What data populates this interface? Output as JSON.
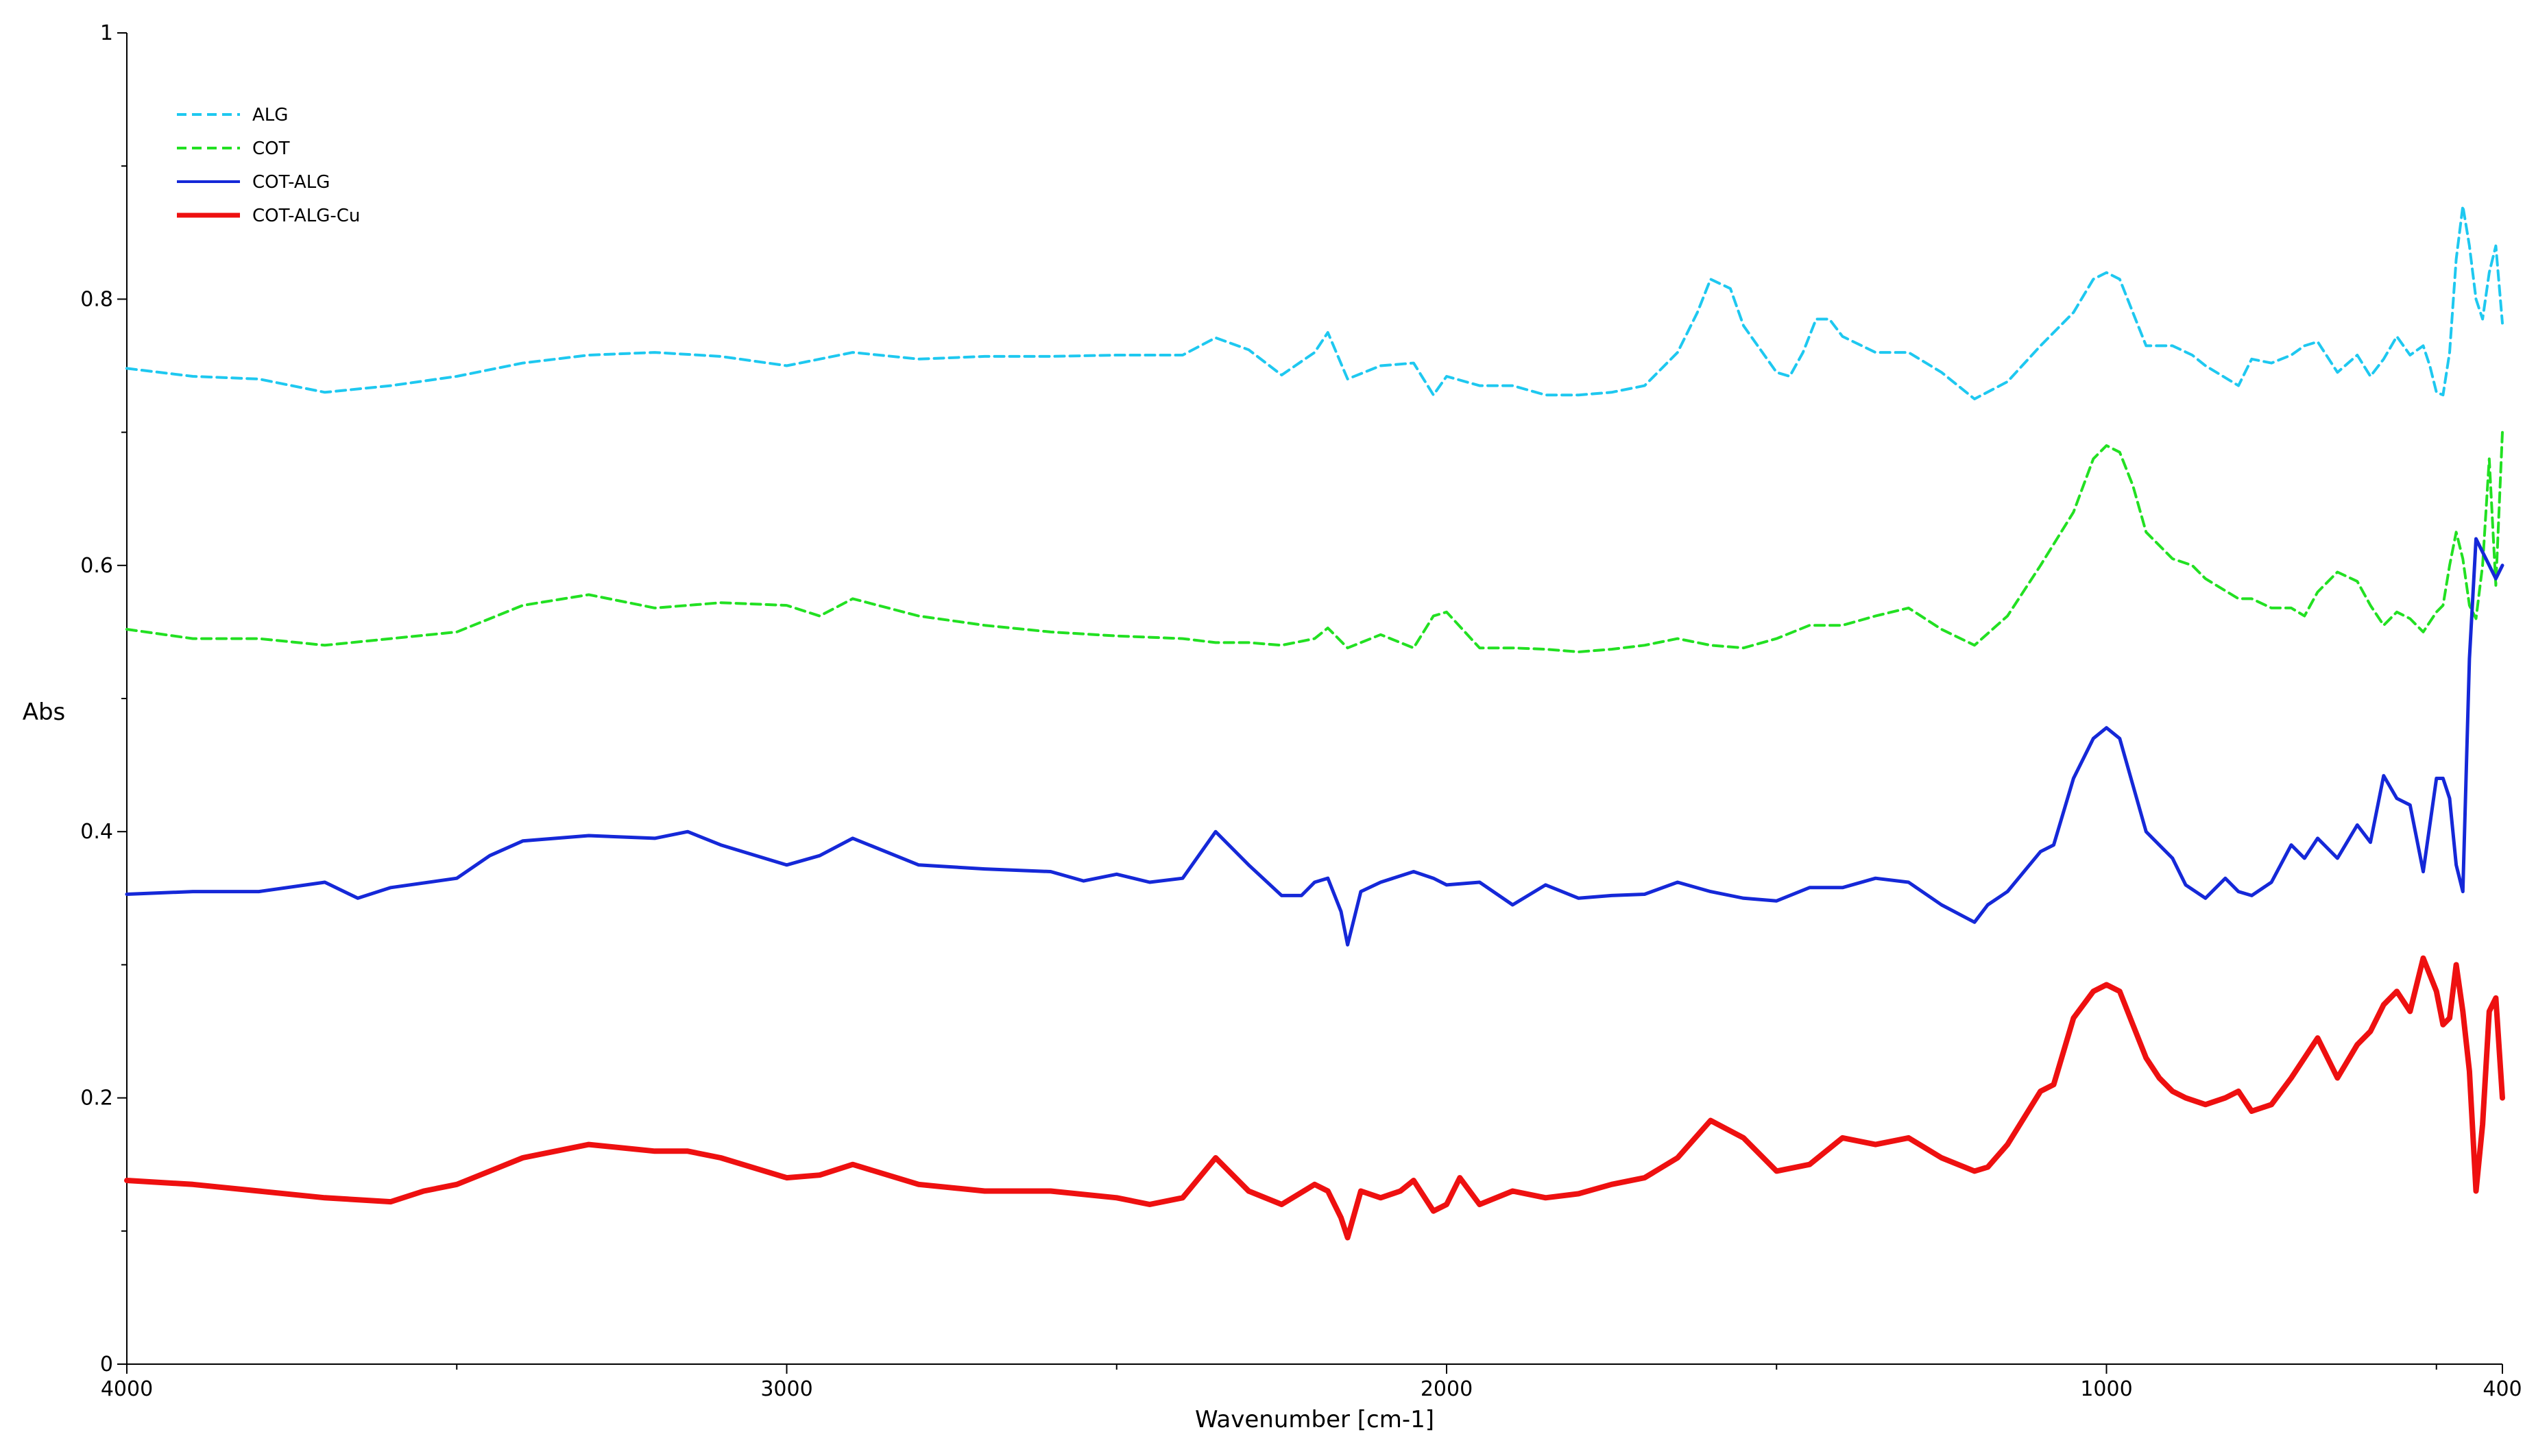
{
  "chart_data": {
    "type": "line",
    "title": "",
    "xlabel": "Wavenumber [cm-1]",
    "ylabel": "Abs",
    "xlim": [
      4000,
      400
    ],
    "ylim": [
      0,
      1
    ],
    "x_reversed": true,
    "x_ticks": [
      4000,
      3000,
      2000,
      1000,
      400
    ],
    "x_tick_labels": [
      "4000",
      "3000",
      "2000",
      "1000",
      "400"
    ],
    "y_ticks": [
      0,
      0.2,
      0.4,
      0.6,
      0.8,
      1
    ],
    "y_tick_labels": [
      "0",
      "0.2",
      "0.4",
      "0.6",
      "0.8",
      "1"
    ],
    "grid": false,
    "legend_position": "top-left",
    "series": [
      {
        "name": "ALG",
        "color": "#1ec8f0",
        "dash": "dashed",
        "x": [
          4000,
          3900,
          3800,
          3700,
          3600,
          3500,
          3400,
          3300,
          3200,
          3100,
          3000,
          2900,
          2800,
          2700,
          2600,
          2500,
          2400,
          2350,
          2300,
          2250,
          2200,
          2180,
          2150,
          2100,
          2050,
          2020,
          2000,
          1950,
          1900,
          1850,
          1800,
          1750,
          1700,
          1650,
          1620,
          1600,
          1570,
          1550,
          1500,
          1480,
          1460,
          1440,
          1420,
          1400,
          1350,
          1300,
          1250,
          1200,
          1150,
          1100,
          1050,
          1020,
          1000,
          980,
          960,
          940,
          900,
          870,
          850,
          800,
          780,
          750,
          720,
          700,
          680,
          650,
          620,
          600,
          580,
          560,
          540,
          520,
          510,
          500,
          490,
          480,
          470,
          460,
          450,
          440,
          430,
          420,
          410,
          400
        ],
        "y": [
          0.748,
          0.742,
          0.74,
          0.73,
          0.735,
          0.742,
          0.752,
          0.758,
          0.76,
          0.757,
          0.75,
          0.76,
          0.755,
          0.757,
          0.757,
          0.758,
          0.758,
          0.771,
          0.762,
          0.743,
          0.76,
          0.775,
          0.74,
          0.75,
          0.752,
          0.728,
          0.742,
          0.735,
          0.735,
          0.728,
          0.728,
          0.73,
          0.735,
          0.76,
          0.79,
          0.815,
          0.808,
          0.78,
          0.745,
          0.742,
          0.76,
          0.785,
          0.785,
          0.772,
          0.76,
          0.76,
          0.745,
          0.725,
          0.738,
          0.765,
          0.79,
          0.815,
          0.82,
          0.815,
          0.79,
          0.765,
          0.765,
          0.758,
          0.75,
          0.735,
          0.755,
          0.752,
          0.758,
          0.765,
          0.768,
          0.745,
          0.758,
          0.742,
          0.755,
          0.772,
          0.758,
          0.765,
          0.75,
          0.73,
          0.728,
          0.76,
          0.83,
          0.87,
          0.84,
          0.8,
          0.785,
          0.82,
          0.84,
          0.782
        ]
      },
      {
        "name": "COT",
        "color": "#22e022",
        "dash": "dashed",
        "x": [
          4000,
          3900,
          3800,
          3700,
          3600,
          3500,
          3400,
          3300,
          3200,
          3100,
          3000,
          2950,
          2900,
          2800,
          2700,
          2600,
          2500,
          2400,
          2350,
          2300,
          2250,
          2200,
          2180,
          2150,
          2100,
          2050,
          2020,
          2000,
          1950,
          1900,
          1850,
          1800,
          1750,
          1700,
          1650,
          1600,
          1550,
          1500,
          1450,
          1400,
          1350,
          1300,
          1250,
          1200,
          1150,
          1100,
          1050,
          1020,
          1000,
          980,
          960,
          940,
          900,
          870,
          850,
          800,
          780,
          750,
          720,
          700,
          680,
          650,
          620,
          600,
          580,
          560,
          540,
          520,
          500,
          490,
          480,
          470,
          460,
          450,
          440,
          430,
          420,
          410,
          400
        ],
        "y": [
          0.552,
          0.545,
          0.545,
          0.54,
          0.545,
          0.55,
          0.57,
          0.578,
          0.568,
          0.572,
          0.57,
          0.562,
          0.575,
          0.562,
          0.555,
          0.55,
          0.547,
          0.545,
          0.542,
          0.542,
          0.54,
          0.545,
          0.553,
          0.538,
          0.548,
          0.538,
          0.562,
          0.565,
          0.538,
          0.538,
          0.537,
          0.535,
          0.537,
          0.54,
          0.545,
          0.54,
          0.538,
          0.545,
          0.555,
          0.555,
          0.562,
          0.568,
          0.552,
          0.54,
          0.562,
          0.6,
          0.64,
          0.68,
          0.69,
          0.685,
          0.66,
          0.625,
          0.605,
          0.6,
          0.59,
          0.575,
          0.575,
          0.568,
          0.568,
          0.562,
          0.58,
          0.595,
          0.588,
          0.57,
          0.555,
          0.565,
          0.56,
          0.55,
          0.565,
          0.57,
          0.6,
          0.625,
          0.605,
          0.57,
          0.56,
          0.6,
          0.68,
          0.585,
          0.7
        ]
      },
      {
        "name": "COT-ALG",
        "color": "#1528d8",
        "dash": "solid",
        "x": [
          4000,
          3900,
          3800,
          3700,
          3650,
          3600,
          3500,
          3450,
          3400,
          3300,
          3200,
          3150,
          3100,
          3000,
          2950,
          2900,
          2800,
          2700,
          2600,
          2550,
          2500,
          2450,
          2400,
          2350,
          2300,
          2250,
          2220,
          2200,
          2180,
          2160,
          2150,
          2130,
          2100,
          2050,
          2020,
          2000,
          1950,
          1900,
          1850,
          1800,
          1750,
          1700,
          1650,
          1600,
          1550,
          1500,
          1450,
          1400,
          1350,
          1300,
          1250,
          1200,
          1180,
          1150,
          1100,
          1080,
          1050,
          1020,
          1000,
          980,
          960,
          940,
          920,
          900,
          880,
          850,
          820,
          800,
          780,
          750,
          720,
          700,
          680,
          650,
          620,
          600,
          580,
          560,
          540,
          520,
          500,
          490,
          480,
          470,
          460,
          450,
          440,
          430,
          420,
          410,
          400
        ],
        "y": [
          0.353,
          0.355,
          0.355,
          0.362,
          0.35,
          0.358,
          0.365,
          0.382,
          0.393,
          0.397,
          0.395,
          0.4,
          0.39,
          0.375,
          0.382,
          0.395,
          0.375,
          0.372,
          0.37,
          0.363,
          0.368,
          0.362,
          0.365,
          0.4,
          0.375,
          0.352,
          0.352,
          0.362,
          0.365,
          0.34,
          0.315,
          0.355,
          0.362,
          0.37,
          0.365,
          0.36,
          0.362,
          0.345,
          0.36,
          0.35,
          0.352,
          0.353,
          0.362,
          0.355,
          0.35,
          0.348,
          0.358,
          0.358,
          0.365,
          0.362,
          0.345,
          0.332,
          0.345,
          0.355,
          0.385,
          0.39,
          0.44,
          0.47,
          0.478,
          0.47,
          0.435,
          0.4,
          0.39,
          0.38,
          0.36,
          0.35,
          0.365,
          0.355,
          0.352,
          0.362,
          0.39,
          0.38,
          0.395,
          0.38,
          0.405,
          0.392,
          0.442,
          0.425,
          0.42,
          0.37,
          0.44,
          0.44,
          0.425,
          0.375,
          0.355,
          0.53,
          0.62,
          0.61,
          0.6,
          0.59,
          0.6
        ]
      },
      {
        "name": "COT-ALG-Cu",
        "color": "#ee1010",
        "dash": "solid",
        "x": [
          4000,
          3900,
          3800,
          3700,
          3600,
          3550,
          3500,
          3450,
          3400,
          3300,
          3200,
          3150,
          3100,
          3000,
          2950,
          2900,
          2800,
          2700,
          2600,
          2500,
          2450,
          2400,
          2350,
          2300,
          2250,
          2200,
          2180,
          2160,
          2150,
          2130,
          2100,
          2070,
          2050,
          2020,
          2000,
          1980,
          1950,
          1900,
          1850,
          1800,
          1750,
          1700,
          1650,
          1600,
          1550,
          1500,
          1450,
          1400,
          1350,
          1300,
          1250,
          1200,
          1180,
          1150,
          1100,
          1080,
          1050,
          1020,
          1000,
          980,
          960,
          940,
          920,
          900,
          880,
          850,
          820,
          800,
          780,
          750,
          720,
          700,
          680,
          650,
          620,
          600,
          580,
          560,
          540,
          520,
          500,
          490,
          480,
          470,
          460,
          450,
          440,
          430,
          420,
          410,
          400
        ],
        "y": [
          0.138,
          0.135,
          0.13,
          0.125,
          0.122,
          0.13,
          0.135,
          0.145,
          0.155,
          0.165,
          0.16,
          0.16,
          0.155,
          0.14,
          0.142,
          0.15,
          0.135,
          0.13,
          0.13,
          0.125,
          0.12,
          0.125,
          0.155,
          0.13,
          0.12,
          0.135,
          0.13,
          0.11,
          0.095,
          0.13,
          0.125,
          0.13,
          0.138,
          0.115,
          0.12,
          0.14,
          0.12,
          0.13,
          0.125,
          0.128,
          0.135,
          0.14,
          0.155,
          0.183,
          0.17,
          0.145,
          0.15,
          0.17,
          0.165,
          0.17,
          0.155,
          0.145,
          0.148,
          0.165,
          0.205,
          0.21,
          0.26,
          0.28,
          0.285,
          0.28,
          0.255,
          0.23,
          0.215,
          0.205,
          0.2,
          0.195,
          0.2,
          0.205,
          0.19,
          0.195,
          0.215,
          0.23,
          0.245,
          0.215,
          0.24,
          0.25,
          0.27,
          0.28,
          0.265,
          0.305,
          0.28,
          0.255,
          0.26,
          0.3,
          0.265,
          0.22,
          0.13,
          0.18,
          0.265,
          0.275,
          0.2
        ]
      }
    ]
  }
}
